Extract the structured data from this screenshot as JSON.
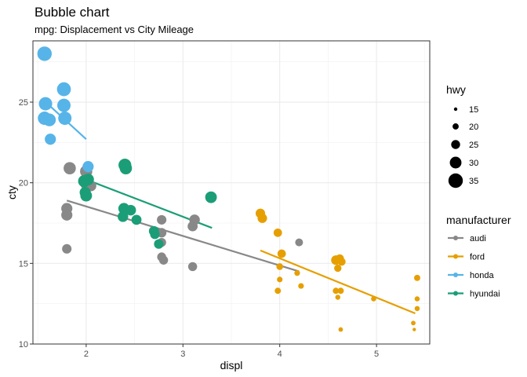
{
  "chart_data": {
    "type": "scatter",
    "title": "Bubble chart",
    "subtitle": "mpg: Displacement vs City Mileage",
    "xlabel": "displ",
    "ylabel": "cty",
    "xlim": [
      1.45,
      5.55
    ],
    "ylim": [
      10,
      28.8
    ],
    "xticks": [
      2,
      3,
      4,
      5
    ],
    "yticks": [
      10,
      15,
      20,
      25
    ],
    "grid": true,
    "size_legend": {
      "title": "hwy",
      "values": [
        15,
        20,
        25,
        30,
        35
      ]
    },
    "color_legend": {
      "title": "manufacturer",
      "placement": "right"
    },
    "series": [
      {
        "name": "audi",
        "color": "#888888",
        "trend": [
          [
            1.8,
            18.9
          ],
          [
            4.2,
            14.5
          ]
        ],
        "points": [
          {
            "x": 1.8,
            "y": 18.4,
            "size": 29
          },
          {
            "x": 1.8,
            "y": 18.0,
            "size": 29
          },
          {
            "x": 1.8,
            "y": 15.9,
            "size": 26
          },
          {
            "x": 1.83,
            "y": 20.9,
            "size": 31
          },
          {
            "x": 2.0,
            "y": 20.7,
            "size": 31
          },
          {
            "x": 2.0,
            "y": 19.9,
            "size": 29
          },
          {
            "x": 2.05,
            "y": 19.8,
            "size": 28
          },
          {
            "x": 2.78,
            "y": 17.7,
            "size": 26
          },
          {
            "x": 2.78,
            "y": 16.9,
            "size": 26
          },
          {
            "x": 2.78,
            "y": 16.3,
            "size": 25
          },
          {
            "x": 2.78,
            "y": 15.4,
            "size": 25
          },
          {
            "x": 2.8,
            "y": 15.2,
            "size": 25
          },
          {
            "x": 3.1,
            "y": 17.3,
            "size": 27
          },
          {
            "x": 3.12,
            "y": 17.7,
            "size": 28
          },
          {
            "x": 3.1,
            "y": 14.8,
            "size": 25
          },
          {
            "x": 4.2,
            "y": 16.3,
            "size": 23
          }
        ]
      },
      {
        "name": "ford",
        "color": "#e69f00",
        "trend": [
          [
            3.8,
            15.8
          ],
          [
            5.4,
            11.9
          ]
        ],
        "points": [
          {
            "x": 3.8,
            "y": 18.1,
            "size": 26
          },
          {
            "x": 3.82,
            "y": 17.8,
            "size": 26
          },
          {
            "x": 3.98,
            "y": 16.9,
            "size": 24
          },
          {
            "x": 4.02,
            "y": 15.6,
            "size": 24
          },
          {
            "x": 4.0,
            "y": 14.8,
            "size": 21
          },
          {
            "x": 4.0,
            "y": 14.0,
            "size": 19
          },
          {
            "x": 3.98,
            "y": 13.3,
            "size": 20
          },
          {
            "x": 4.18,
            "y": 14.4,
            "size": 19
          },
          {
            "x": 4.22,
            "y": 13.6,
            "size": 19
          },
          {
            "x": 4.58,
            "y": 15.2,
            "size": 26
          },
          {
            "x": 4.62,
            "y": 15.3,
            "size": 24
          },
          {
            "x": 4.64,
            "y": 15.1,
            "size": 23
          },
          {
            "x": 4.6,
            "y": 14.7,
            "size": 22
          },
          {
            "x": 4.58,
            "y": 13.3,
            "size": 20
          },
          {
            "x": 4.63,
            "y": 13.3,
            "size": 20
          },
          {
            "x": 4.6,
            "y": 12.9,
            "size": 18
          },
          {
            "x": 4.63,
            "y": 10.9,
            "size": 17
          },
          {
            "x": 4.97,
            "y": 12.8,
            "size": 18
          },
          {
            "x": 5.42,
            "y": 14.1,
            "size": 20
          },
          {
            "x": 5.42,
            "y": 12.8,
            "size": 18
          },
          {
            "x": 5.42,
            "y": 12.2,
            "size": 18
          },
          {
            "x": 5.38,
            "y": 11.3,
            "size": 17
          },
          {
            "x": 5.39,
            "y": 10.9,
            "size": 15
          }
        ]
      },
      {
        "name": "honda",
        "color": "#56b4e9",
        "trend": [
          [
            1.6,
            24.9
          ],
          [
            2.0,
            22.7
          ]
        ],
        "points": [
          {
            "x": 1.57,
            "y": 28.0,
            "size": 35
          },
          {
            "x": 1.58,
            "y": 24.9,
            "size": 33
          },
          {
            "x": 1.57,
            "y": 24.0,
            "size": 33
          },
          {
            "x": 1.62,
            "y": 23.9,
            "size": 32
          },
          {
            "x": 1.63,
            "y": 22.7,
            "size": 29
          },
          {
            "x": 1.77,
            "y": 25.8,
            "size": 34
          },
          {
            "x": 1.77,
            "y": 24.8,
            "size": 33
          },
          {
            "x": 1.78,
            "y": 24.0,
            "size": 33
          },
          {
            "x": 2.02,
            "y": 21.0,
            "size": 29
          }
        ]
      },
      {
        "name": "hyundai",
        "color": "#1b9e77",
        "trend": [
          [
            2.0,
            20.2
          ],
          [
            3.3,
            17.2
          ]
        ],
        "points": [
          {
            "x": 1.98,
            "y": 20.1,
            "size": 31
          },
          {
            "x": 2.0,
            "y": 19.2,
            "size": 30
          },
          {
            "x": 1.99,
            "y": 19.4,
            "size": 29
          },
          {
            "x": 2.02,
            "y": 20.2,
            "size": 30
          },
          {
            "x": 2.4,
            "y": 21.1,
            "size": 32
          },
          {
            "x": 2.41,
            "y": 20.9,
            "size": 31
          },
          {
            "x": 2.39,
            "y": 18.4,
            "size": 29
          },
          {
            "x": 2.38,
            "y": 17.9,
            "size": 28
          },
          {
            "x": 2.46,
            "y": 18.3,
            "size": 28
          },
          {
            "x": 2.52,
            "y": 17.7,
            "size": 27
          },
          {
            "x": 2.7,
            "y": 17.0,
            "size": 27
          },
          {
            "x": 2.71,
            "y": 16.8,
            "size": 26
          },
          {
            "x": 2.75,
            "y": 16.2,
            "size": 26
          },
          {
            "x": 3.29,
            "y": 19.1,
            "size": 30
          }
        ]
      }
    ]
  }
}
